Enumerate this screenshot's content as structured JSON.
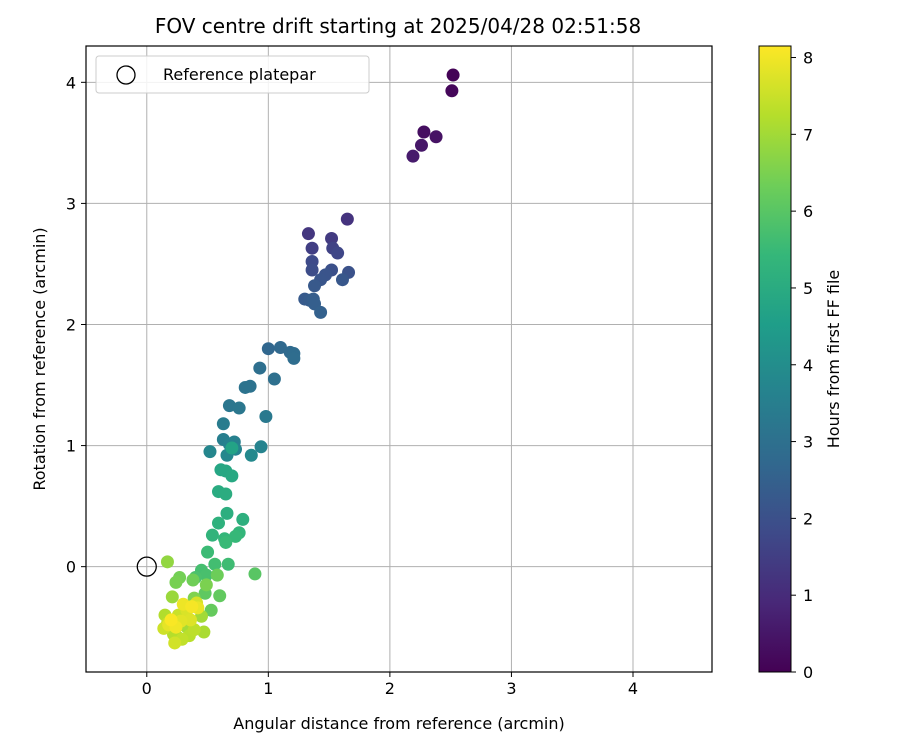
{
  "chart_data": {
    "type": "scatter",
    "title": "FOV centre drift starting at 2025/04/28 02:51:58",
    "xlabel": "Angular distance from reference (arcmin)",
    "ylabel": "Rotation from reference (arcmin)",
    "xlim": [
      -0.5,
      4.65
    ],
    "ylim": [
      -0.87,
      4.3
    ],
    "xticks": [
      0,
      1,
      2,
      3,
      4
    ],
    "yticks": [
      0,
      1,
      2,
      3,
      4
    ],
    "grid": true,
    "colormap": "viridis",
    "colorbar": {
      "label": "Hours from first FF file",
      "range": [
        0,
        8.15
      ],
      "ticks": [
        0,
        1,
        2,
        3,
        4,
        5,
        6,
        7,
        8
      ]
    },
    "legend": {
      "position": "top-left",
      "entries": [
        {
          "label": "Reference platepar",
          "marker": "open-circle"
        }
      ]
    },
    "reference_point": {
      "x": 0,
      "y": 0
    },
    "series": [
      {
        "points": [
          [
            2.52,
            4.06,
            0.05
          ],
          [
            2.51,
            3.93,
            0.15
          ],
          [
            2.28,
            3.59,
            0.3
          ],
          [
            2.38,
            3.55,
            0.4
          ],
          [
            2.26,
            3.48,
            0.5
          ],
          [
            2.19,
            3.39,
            0.6
          ],
          [
            1.65,
            2.87,
            1.2
          ],
          [
            1.33,
            2.75,
            1.3
          ],
          [
            1.52,
            2.71,
            1.4
          ],
          [
            1.36,
            2.63,
            1.5
          ],
          [
            1.53,
            2.63,
            1.6
          ],
          [
            1.57,
            2.59,
            1.7
          ],
          [
            1.36,
            2.52,
            1.8
          ],
          [
            1.36,
            2.45,
            1.9
          ],
          [
            1.52,
            2.45,
            2.0
          ],
          [
            1.66,
            2.43,
            2.05
          ],
          [
            1.47,
            2.41,
            2.1
          ],
          [
            1.43,
            2.37,
            2.15
          ],
          [
            1.61,
            2.37,
            2.2
          ],
          [
            1.38,
            2.32,
            2.25
          ],
          [
            1.3,
            2.21,
            2.3
          ],
          [
            1.34,
            2.2,
            2.35
          ],
          [
            1.37,
            2.21,
            2.4
          ],
          [
            1.38,
            2.17,
            2.45
          ],
          [
            1.43,
            2.1,
            2.5
          ],
          [
            1.0,
            1.8,
            2.7
          ],
          [
            1.1,
            1.81,
            2.75
          ],
          [
            1.18,
            1.77,
            2.8
          ],
          [
            1.21,
            1.76,
            2.85
          ],
          [
            1.21,
            1.72,
            2.9
          ],
          [
            0.93,
            1.64,
            2.95
          ],
          [
            1.05,
            1.55,
            3.0
          ],
          [
            0.85,
            1.49,
            3.05
          ],
          [
            0.81,
            1.48,
            3.1
          ],
          [
            0.68,
            1.33,
            3.2
          ],
          [
            0.76,
            1.31,
            3.25
          ],
          [
            0.98,
            1.24,
            3.3
          ],
          [
            0.63,
            1.18,
            3.4
          ],
          [
            0.63,
            1.05,
            3.5
          ],
          [
            0.72,
            1.03,
            3.55
          ],
          [
            0.68,
            1.01,
            3.6
          ],
          [
            0.94,
            0.99,
            3.65
          ],
          [
            0.73,
            0.97,
            3.7
          ],
          [
            0.52,
            0.95,
            3.75
          ],
          [
            0.66,
            0.92,
            3.8
          ],
          [
            0.86,
            0.92,
            3.85
          ],
          [
            0.7,
            0.98,
            4.7
          ],
          [
            0.61,
            0.8,
            4.8
          ],
          [
            0.65,
            0.79,
            4.85
          ],
          [
            0.7,
            0.75,
            4.9
          ],
          [
            0.59,
            0.62,
            5.0
          ],
          [
            0.65,
            0.6,
            5.05
          ],
          [
            0.66,
            0.44,
            5.1
          ],
          [
            0.79,
            0.39,
            5.15
          ],
          [
            0.59,
            0.36,
            5.2
          ],
          [
            0.54,
            0.26,
            5.3
          ],
          [
            0.76,
            0.28,
            5.35
          ],
          [
            0.64,
            0.23,
            5.4
          ],
          [
            0.73,
            0.25,
            5.45
          ],
          [
            0.65,
            0.2,
            5.5
          ],
          [
            0.5,
            0.12,
            5.55
          ],
          [
            0.67,
            0.02,
            5.6
          ],
          [
            0.56,
            0.02,
            5.65
          ],
          [
            0.45,
            -0.03,
            5.7
          ],
          [
            0.49,
            -0.07,
            5.75
          ],
          [
            0.4,
            -0.09,
            5.8
          ],
          [
            0.89,
            -0.06,
            6.0
          ],
          [
            0.48,
            -0.22,
            6.1
          ],
          [
            0.6,
            -0.24,
            6.15
          ],
          [
            0.53,
            -0.36,
            6.2
          ],
          [
            0.58,
            -0.07,
            6.3
          ],
          [
            0.38,
            -0.11,
            6.35
          ],
          [
            0.27,
            -0.09,
            6.4
          ],
          [
            0.24,
            -0.13,
            6.45
          ],
          [
            0.49,
            -0.15,
            6.5
          ],
          [
            0.39,
            -0.26,
            6.55
          ],
          [
            0.17,
            0.04,
            6.8
          ],
          [
            0.21,
            -0.25,
            6.9
          ],
          [
            0.45,
            -0.41,
            7.0
          ],
          [
            0.33,
            -0.5,
            7.05
          ],
          [
            0.47,
            -0.54,
            7.1
          ],
          [
            0.25,
            -0.58,
            7.15
          ],
          [
            0.15,
            -0.4,
            7.2
          ],
          [
            0.22,
            -0.56,
            7.25
          ],
          [
            0.35,
            -0.57,
            7.3
          ],
          [
            0.39,
            -0.52,
            7.35
          ],
          [
            0.29,
            -0.6,
            7.4
          ],
          [
            0.17,
            -0.47,
            7.45
          ],
          [
            0.26,
            -0.4,
            7.5
          ],
          [
            0.14,
            -0.51,
            7.55
          ],
          [
            0.23,
            -0.63,
            7.6
          ],
          [
            0.41,
            -0.3,
            7.65
          ],
          [
            0.33,
            -0.36,
            7.7
          ],
          [
            0.36,
            -0.44,
            7.75
          ],
          [
            0.28,
            -0.45,
            7.8
          ],
          [
            0.18,
            -0.48,
            7.85
          ],
          [
            0.42,
            -0.34,
            7.9
          ],
          [
            0.3,
            -0.31,
            7.95
          ],
          [
            0.24,
            -0.5,
            8.0
          ],
          [
            0.37,
            -0.33,
            8.05
          ],
          [
            0.2,
            -0.44,
            8.1
          ]
        ]
      }
    ]
  }
}
